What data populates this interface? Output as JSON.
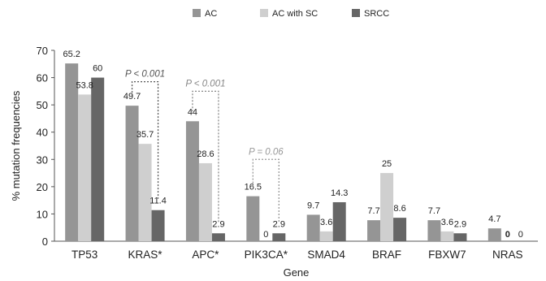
{
  "chart_data": {
    "type": "bar",
    "title": "",
    "xlabel": "Gene",
    "ylabel": "% mutation frequencies",
    "ylim": [
      0,
      70
    ],
    "yticks": [
      0,
      10,
      20,
      30,
      40,
      50,
      60,
      70
    ],
    "grid": false,
    "legend_position": "top-center",
    "categories": [
      "TP53",
      "KRAS*",
      "APC*",
      "PIK3CA*",
      "SMAD4",
      "BRAF",
      "FBXW7",
      "NRAS"
    ],
    "series": [
      {
        "name": "AC",
        "color": "#959595",
        "values": [
          65.2,
          49.7,
          44,
          16.5,
          9.7,
          7.7,
          7.7,
          4.7
        ],
        "labels": [
          "65.2",
          "49.7",
          "44",
          "16.5",
          "9.7",
          "7.7",
          "7.7",
          "4.7"
        ]
      },
      {
        "name": "AC with SC",
        "color": "#cfcfcf",
        "values": [
          53.8,
          35.7,
          28.6,
          0,
          3.6,
          25,
          3.6,
          0
        ],
        "labels": [
          "53.8",
          "35.7",
          "28.6",
          "0",
          "3.6",
          "25",
          "3.6",
          "0"
        ]
      },
      {
        "name": "SRCC",
        "color": "#666666",
        "values": [
          60,
          11.4,
          2.9,
          2.9,
          14.3,
          8.6,
          2.9,
          0
        ],
        "labels": [
          "60",
          "11.4",
          "2.9",
          "2.9",
          "14.3",
          "8.6",
          "2.9",
          "0"
        ]
      }
    ],
    "annotations": [
      {
        "category": 1,
        "text": "P < 0.001",
        "color": "#555555",
        "top_value": 58.5
      },
      {
        "category": 2,
        "text": "P < 0.001",
        "color": "#888888",
        "top_value": 55
      },
      {
        "category": 3,
        "text": "P = 0.06",
        "color": "#999999",
        "top_value": 30
      }
    ]
  }
}
